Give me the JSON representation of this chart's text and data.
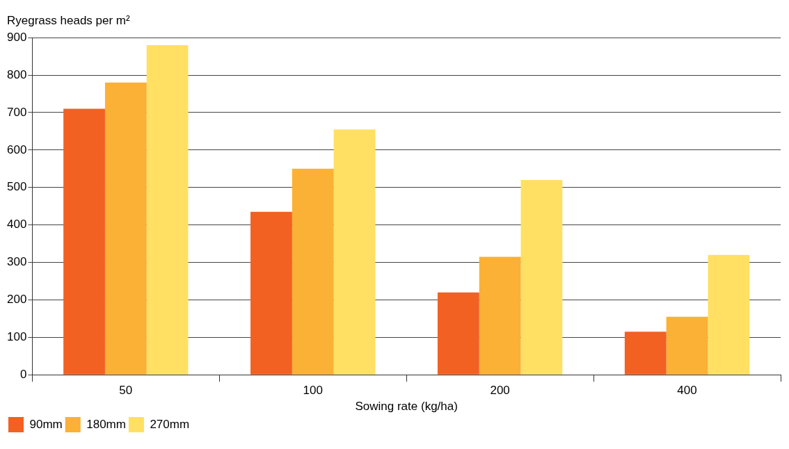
{
  "chart_data": {
    "type": "bar",
    "ylabel": "Ryegrass heads per m²",
    "xlabel": "Sowing rate (kg/ha)",
    "categories": [
      "50",
      "100",
      "200",
      "400"
    ],
    "series": [
      {
        "name": "90mm",
        "color": "#f26122",
        "values": [
          710,
          435,
          220,
          115
        ]
      },
      {
        "name": "180mm",
        "color": "#fbb036",
        "values": [
          780,
          550,
          315,
          155
        ]
      },
      {
        "name": "270mm",
        "color": "#ffe063",
        "values": [
          880,
          655,
          520,
          320
        ]
      }
    ],
    "ylim": [
      0,
      900
    ],
    "yticks": [
      0,
      100,
      200,
      300,
      400,
      500,
      600,
      700,
      800,
      900
    ],
    "grid": "y",
    "legend": "bottom left"
  }
}
